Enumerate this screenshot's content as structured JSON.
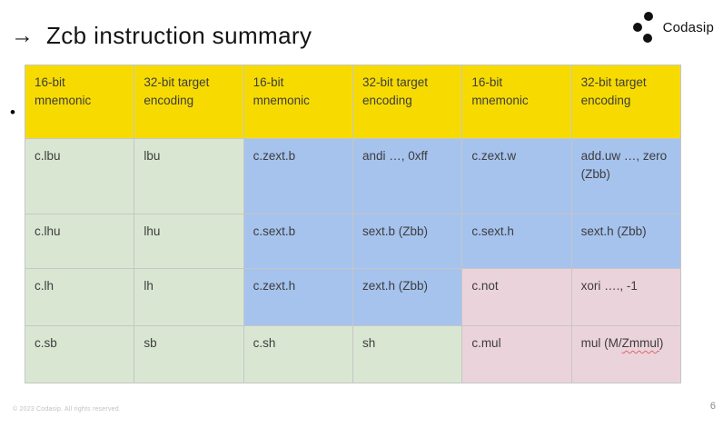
{
  "slide": {
    "title": "Zcb instruction summary",
    "title_arrow": "→",
    "bullet": "•",
    "footer": "© 2023 Codasip. All rights reserved.",
    "page_number": "6"
  },
  "logo": {
    "text": "Codasip",
    "icon": "codasip-three-dots"
  },
  "colors": {
    "header_bg": "#F7DB00",
    "green": "#D9E7D2",
    "blue": "#A6C3EE",
    "pink": "#EBD3DB",
    "border": "#C6C6C6"
  },
  "table": {
    "headers": [
      "16-bit mnemonic",
      "32-bit target encoding",
      "16-bit mnemonic",
      "32-bit target encoding",
      "16-bit mnemonic",
      "32-bit target encoding"
    ],
    "rows": [
      [
        {
          "text": "c.lbu",
          "bg": "green"
        },
        {
          "text": "lbu",
          "bg": "green"
        },
        {
          "text": "c.zext.b",
          "bg": "blue"
        },
        {
          "text": "andi …, 0xff",
          "bg": "blue"
        },
        {
          "text": "c.zext.w",
          "bg": "blue"
        },
        {
          "text": "add.uw …, zero (Zbb)",
          "bg": "blue"
        }
      ],
      [
        {
          "text": "c.lhu",
          "bg": "green"
        },
        {
          "text": "lhu",
          "bg": "green"
        },
        {
          "text": "c.sext.b",
          "bg": "blue"
        },
        {
          "text": "sext.b (Zbb)",
          "bg": "blue"
        },
        {
          "text": "c.sext.h",
          "bg": "blue"
        },
        {
          "text": "sext.h (Zbb)",
          "bg": "blue"
        }
      ],
      [
        {
          "text": "c.lh",
          "bg": "green"
        },
        {
          "text": "lh",
          "bg": "green"
        },
        {
          "text": "c.zext.h",
          "bg": "blue"
        },
        {
          "text": "zext.h (Zbb)",
          "bg": "blue"
        },
        {
          "text": "c.not",
          "bg": "pink"
        },
        {
          "text": "xori …., -1",
          "bg": "pink"
        }
      ],
      [
        {
          "text": "c.sb",
          "bg": "green"
        },
        {
          "text": "sb",
          "bg": "green"
        },
        {
          "text": "c.sh",
          "bg": "green"
        },
        {
          "text": "sh",
          "bg": "green"
        },
        {
          "text": "c.mul",
          "bg": "pink"
        },
        {
          "text": "mul (M/Zmmul)",
          "bg": "pink",
          "wavy": "Zmmul"
        }
      ]
    ]
  }
}
